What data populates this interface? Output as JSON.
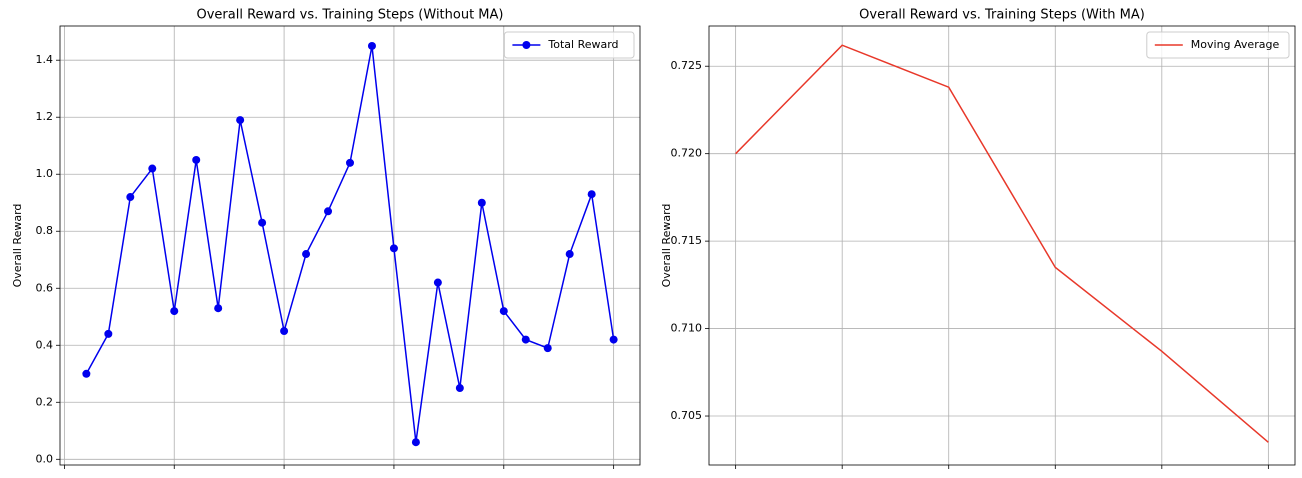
{
  "chart_data": [
    {
      "type": "line",
      "title": "Overall Reward vs. Training Steps (Without MA)",
      "y_label": "Overall Reward",
      "x": [
        1,
        2,
        3,
        4,
        5,
        6,
        7,
        8,
        9,
        10,
        11,
        12,
        13,
        14,
        15,
        16,
        17,
        18,
        19,
        20,
        21,
        22,
        23,
        24,
        25
      ],
      "series": [
        {
          "name": "Total Reward",
          "color": "#0000ee",
          "marker": "o",
          "values": [
            0.3,
            0.44,
            0.92,
            1.02,
            0.52,
            1.05,
            0.53,
            1.19,
            0.83,
            0.45,
            0.72,
            0.87,
            1.04,
            1.45,
            0.74,
            0.06,
            0.62,
            0.25,
            0.9,
            0.52,
            0.42,
            0.39,
            0.72,
            0.93,
            0.42
          ]
        }
      ],
      "xlim": [
        -0.2,
        26.2
      ],
      "xticks": [
        0,
        5,
        10,
        15,
        20,
        25
      ],
      "ylim": [
        -0.02,
        1.52
      ],
      "yticks": [
        {
          "value": 0,
          "label": "0.0"
        },
        0.2,
        0.4,
        0.6,
        0.8,
        {
          "value": 1,
          "label": "1.0"
        },
        1.2,
        1.4
      ],
      "grid": true,
      "legend": "upper right"
    },
    {
      "type": "line",
      "title": "Overall Reward vs. Training Steps (With MA)",
      "y_label": "Overall Reward",
      "x": [
        0,
        1,
        2,
        3,
        4,
        5
      ],
      "series": [
        {
          "name": "Moving Average",
          "color": "#e8382a",
          "values": [
            0.72,
            0.7262,
            0.7238,
            0.7135,
            0.7087,
            0.7035
          ]
        }
      ],
      "xlim": [
        -0.25,
        5.25
      ],
      "xticks": [
        0,
        1,
        2,
        3,
        4,
        5
      ],
      "ylim": [
        0.7022,
        0.7273
      ],
      "yticks": [
        0.705,
        {
          "value": 0.71,
          "label": "0.710"
        },
        0.715,
        {
          "value": 0.72,
          "label": "0.720"
        },
        0.725
      ],
      "grid": true,
      "legend": "upper right"
    }
  ]
}
